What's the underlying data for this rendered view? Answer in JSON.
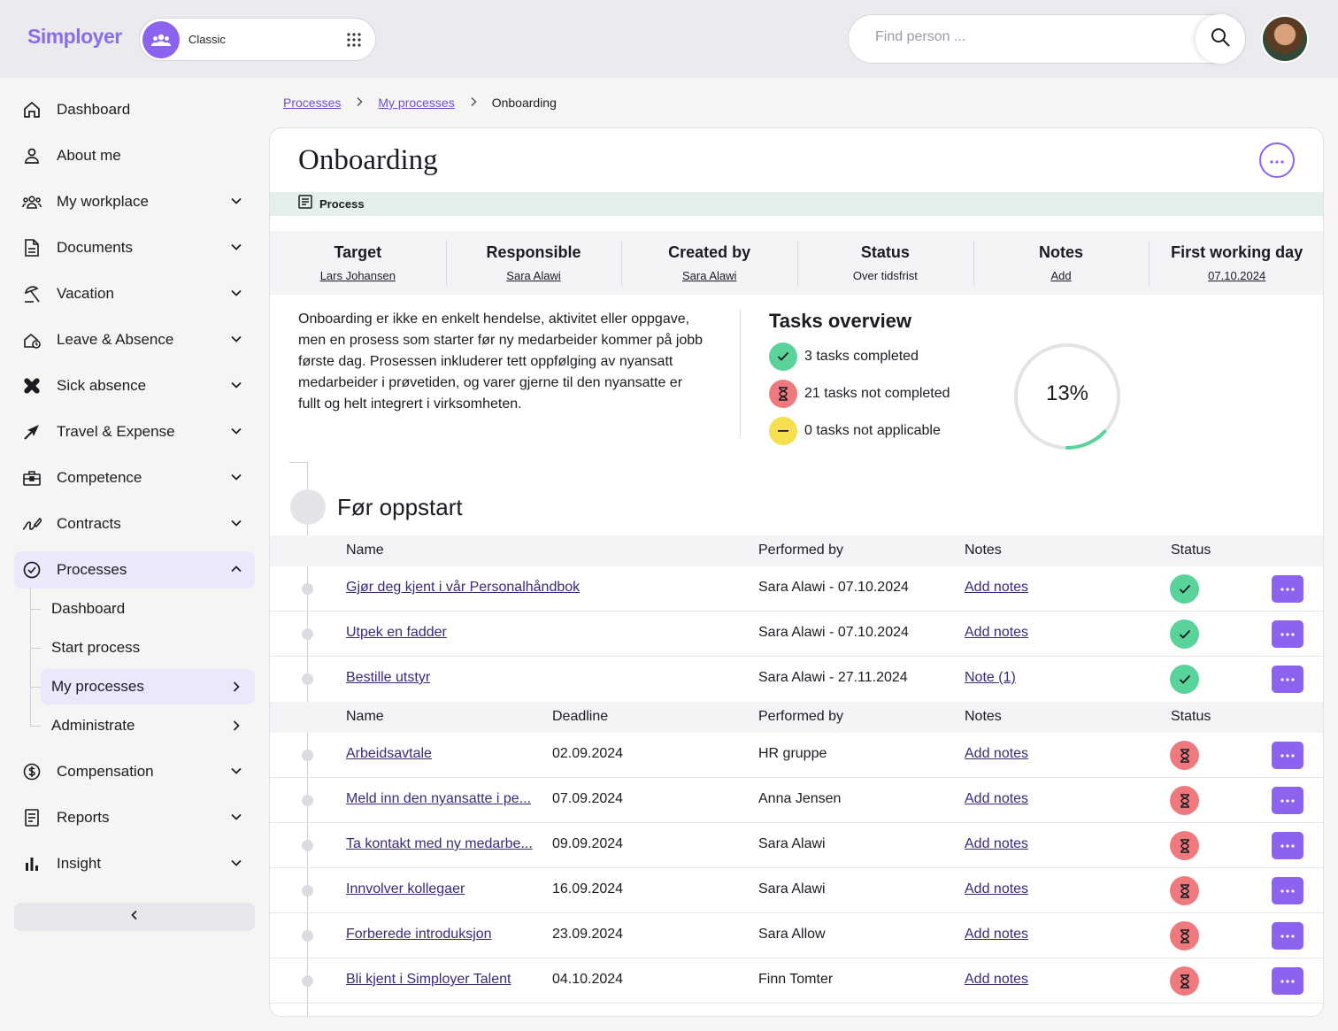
{
  "header": {
    "logo": "Simployer",
    "switcher_label": "Classic",
    "search_placeholder": "Find person ..."
  },
  "sidebar": {
    "items": [
      {
        "label": "Dashboard",
        "icon": "home-icon"
      },
      {
        "label": "About me",
        "icon": "user-icon"
      },
      {
        "label": "My workplace",
        "icon": "people-icon"
      },
      {
        "label": "Documents",
        "icon": "document-icon"
      },
      {
        "label": "Vacation",
        "icon": "beach-icon"
      },
      {
        "label": "Leave & Absence",
        "icon": "leave-icon"
      },
      {
        "label": "Sick absence",
        "icon": "bandage-icon"
      },
      {
        "label": "Travel & Expense",
        "icon": "airplane-icon"
      },
      {
        "label": "Competence",
        "icon": "briefcase-icon"
      },
      {
        "label": "Contracts",
        "icon": "signature-icon"
      },
      {
        "label": "Processes",
        "icon": "check-circle-icon"
      },
      {
        "label": "Compensation",
        "icon": "dollar-icon"
      },
      {
        "label": "Reports",
        "icon": "report-icon"
      },
      {
        "label": "Insight",
        "icon": "bar-chart-icon"
      }
    ],
    "process_sub": [
      {
        "label": "Dashboard"
      },
      {
        "label": "Start process"
      },
      {
        "label": "My processes"
      },
      {
        "label": "Administrate"
      }
    ]
  },
  "breadcrumb": {
    "items": [
      "Processes",
      "My processes"
    ],
    "current": "Onboarding"
  },
  "page": {
    "title": "Onboarding",
    "tag": "Process",
    "meta": [
      {
        "label": "Target",
        "value": "Lars Johansen",
        "link": true
      },
      {
        "label": "Responsible",
        "value": "Sara Alawi",
        "link": true
      },
      {
        "label": "Created by",
        "value": "Sara Alawi",
        "link": true
      },
      {
        "label": "Status",
        "value": "Over tidsfrist",
        "link": false
      },
      {
        "label": "Notes",
        "value": "Add",
        "link": true
      },
      {
        "label": "First working day",
        "value": "07.10.2024",
        "link": true
      }
    ],
    "description": "Onboarding er ikke en enkelt hendelse, aktivitet eller oppgave, men en prosess som starter før ny medarbeider kommer på jobb første dag. Prosessen inkluderer tett oppfølging av nyansatt medarbeider i prøvetiden, og varer gjerne til den nyansatte er fullt og helt integrert i virksomheten."
  },
  "tasks_overview": {
    "title": "Tasks overview",
    "completed": "3 tasks completed",
    "not_completed": "21 tasks not completed",
    "not_applicable": "0 tasks not applicable",
    "progress_label": "13%",
    "progress_fraction": 0.13,
    "colors": {
      "done": "#5ad39b",
      "open": "#ef7a7e",
      "na": "#f5df4d",
      "accent": "#8c63ee"
    }
  },
  "phase": {
    "title": "Før oppstart",
    "table1_headers": {
      "name": "Name",
      "performed": "Performed by",
      "notes": "Notes",
      "status": "Status"
    },
    "table1_rows": [
      {
        "name": "Gjør deg kjent i vår Personalhåndbok",
        "performed": "Sara Alawi - 07.10.2024",
        "notes": "Add notes",
        "status": "completed"
      },
      {
        "name": "Utpek en fadder",
        "performed": "Sara Alawi - 07.10.2024",
        "notes": "Add notes",
        "status": "completed"
      },
      {
        "name": "Bestille utstyr",
        "performed": "Sara Alawi - 27.11.2024",
        "notes": "Note (1)",
        "status": "completed"
      }
    ],
    "table2_headers": {
      "name": "Name",
      "deadline": "Deadline",
      "performed": "Performed by",
      "notes": "Notes",
      "status": "Status"
    },
    "table2_rows": [
      {
        "name": "Arbeidsavtale",
        "deadline": "02.09.2024",
        "performed": "HR gruppe",
        "notes": "Add notes",
        "status": "pending"
      },
      {
        "name": "Meld inn den nyansatte i pe...",
        "deadline": "07.09.2024",
        "performed": "Anna Jensen",
        "notes": "Add notes",
        "status": "pending"
      },
      {
        "name": "Ta kontakt med ny medarbe...",
        "deadline": "09.09.2024",
        "performed": "Sara Alawi",
        "notes": "Add notes",
        "status": "pending"
      },
      {
        "name": "Innvolver kollegaer",
        "deadline": "16.09.2024",
        "performed": "Sara Alawi",
        "notes": "Add notes",
        "status": "pending"
      },
      {
        "name": "Forberede introduksjon",
        "deadline": "23.09.2024",
        "performed": "Sara Allow",
        "notes": "Add notes",
        "status": "pending"
      },
      {
        "name": "Bli kjent i Simployer Talent",
        "deadline": "04.10.2024",
        "performed": "Finn Tomter",
        "notes": "Add notes",
        "status": "pending"
      }
    ]
  }
}
